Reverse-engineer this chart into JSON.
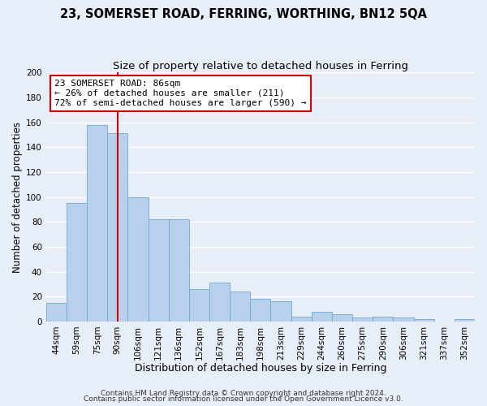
{
  "title": "23, SOMERSET ROAD, FERRING, WORTHING, BN12 5QA",
  "subtitle": "Size of property relative to detached houses in Ferring",
  "xlabel": "Distribution of detached houses by size in Ferring",
  "ylabel": "Number of detached properties",
  "categories": [
    "44sqm",
    "59sqm",
    "75sqm",
    "90sqm",
    "106sqm",
    "121sqm",
    "136sqm",
    "152sqm",
    "167sqm",
    "183sqm",
    "198sqm",
    "213sqm",
    "229sqm",
    "244sqm",
    "260sqm",
    "275sqm",
    "290sqm",
    "306sqm",
    "321sqm",
    "337sqm",
    "352sqm"
  ],
  "values": [
    15,
    95,
    158,
    151,
    100,
    82,
    82,
    26,
    31,
    24,
    18,
    16,
    4,
    8,
    6,
    3,
    4,
    3,
    2,
    0,
    2
  ],
  "bar_color": "#b8d0eb",
  "bar_edge_color": "#6aaad4",
  "vline_index": 3,
  "vline_color": "#cc0000",
  "ylim": [
    0,
    200
  ],
  "yticks": [
    0,
    20,
    40,
    60,
    80,
    100,
    120,
    140,
    160,
    180,
    200
  ],
  "annotation_title": "23 SOMERSET ROAD: 86sqm",
  "annotation_line1": "← 26% of detached houses are smaller (211)",
  "annotation_line2": "72% of semi-detached houses are larger (590) →",
  "annotation_box_color": "#ffffff",
  "annotation_box_edge": "#cc0000",
  "footer1": "Contains HM Land Registry data © Crown copyright and database right 2024.",
  "footer2": "Contains public sector information licensed under the Open Government Licence v3.0.",
  "background_color": "#e8eef8",
  "grid_color": "#ffffff",
  "title_fontsize": 10.5,
  "subtitle_fontsize": 9.5,
  "xlabel_fontsize": 9,
  "ylabel_fontsize": 8.5,
  "tick_fontsize": 7.5,
  "annotation_fontsize": 8,
  "footer_fontsize": 6.5
}
